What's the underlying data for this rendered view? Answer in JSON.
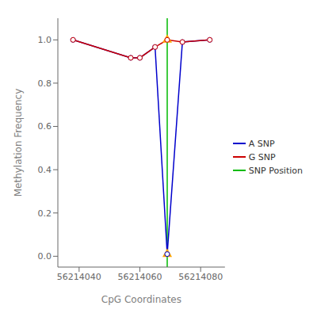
{
  "chart_data": {
    "type": "line",
    "xlabel": "CpG Coordinates",
    "ylabel": "Methylation Frequency",
    "x": [
      56214038,
      56214057,
      56214060,
      56214065,
      56214069,
      56214074,
      56214083
    ],
    "series": [
      {
        "name": "A SNP",
        "color": "#0000cc",
        "marker": "circle",
        "values": [
          1.0,
          0.917,
          0.917,
          0.967,
          0.01,
          0.99,
          1.0
        ]
      },
      {
        "name": "G SNP",
        "color": "#cc0000",
        "marker": "circle",
        "values": [
          1.0,
          0.917,
          0.917,
          0.967,
          1.0,
          0.99,
          1.0
        ]
      }
    ],
    "reference_line": {
      "name": "SNP Position",
      "x": 56214069,
      "color": "#00bb00"
    },
    "snp_markers": {
      "x": 56214069,
      "values": [
        1.0,
        0.01
      ],
      "color": "#FFA500",
      "marker": "triangle"
    },
    "xlim": [
      56214033,
      56214088
    ],
    "ylim": [
      -0.05,
      1.1
    ],
    "xticks": [
      56214040,
      56214060,
      56214080
    ],
    "yticks": [
      {
        "value": 0.0,
        "label": "0.0"
      },
      0.2,
      0.4,
      0.6,
      0.8,
      {
        "value": 1.0,
        "label": "1.0"
      }
    ],
    "grid": false,
    "legend": "right"
  }
}
